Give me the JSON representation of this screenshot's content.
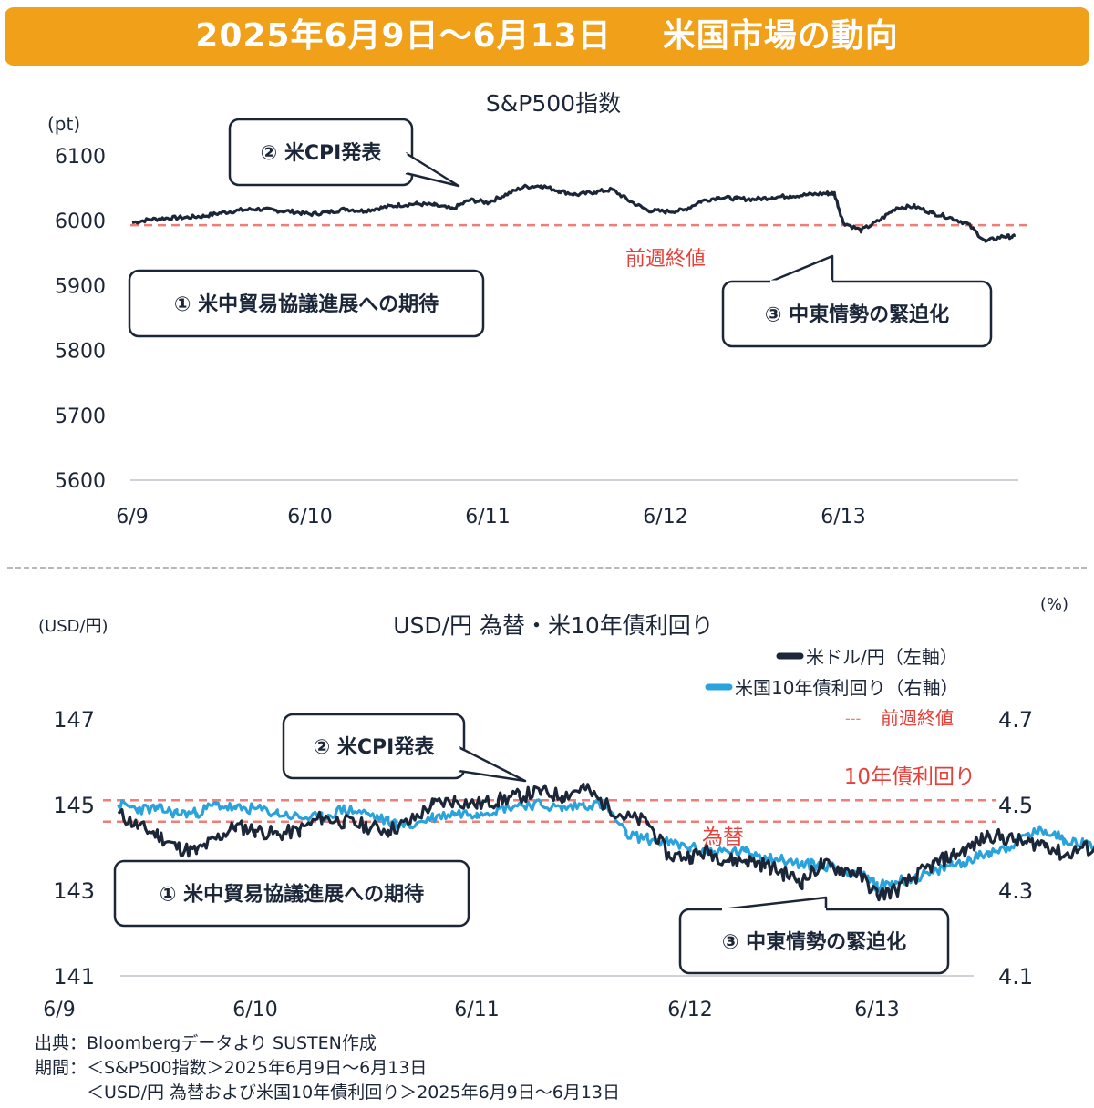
{
  "header": {
    "date_range": "2025年6月9日～6月13日",
    "title": "米国市場の動向"
  },
  "colors": {
    "banner": "#f0a019",
    "navy": "#1b2638",
    "blue": "#2aa3dc",
    "ref_line": "#ef7e79",
    "ref_text": "#e5413a",
    "axis": "#cfd3d8"
  },
  "chart_data": [
    {
      "type": "line",
      "title": "S&P500指数",
      "ylabel": "(pt)",
      "ylim": [
        5600,
        6100
      ],
      "yticks": [
        "6100",
        "6000",
        "5900",
        "5800",
        "5700",
        "5600"
      ],
      "xticks": [
        "6/9",
        "6/10",
        "6/11",
        "6/12",
        "6/13"
      ],
      "reference_line": {
        "label": "前週終値",
        "value": 5993
      },
      "series": [
        {
          "name": "S&P500指数",
          "x": [
            0,
            0.1,
            0.2,
            0.3,
            0.4,
            0.5,
            0.6,
            0.7,
            0.8,
            0.9,
            1,
            1.1,
            1.2,
            1.3,
            1.4,
            1.5,
            1.6,
            1.7,
            1.8,
            1.9,
            2,
            2.1,
            2.2,
            2.3,
            2.4,
            2.5,
            2.6,
            2.7,
            2.8,
            2.9,
            3,
            3.1,
            3.2,
            3.3,
            3.4,
            3.5,
            3.6,
            3.7,
            3.8,
            3.9,
            3.95,
            4,
            4.1,
            4.2,
            4.3,
            4.4,
            4.5,
            4.6,
            4.7,
            4.8,
            4.9,
            4.96
          ],
          "values": [
            5997,
            6002,
            6004,
            6005,
            6007,
            6012,
            6016,
            6018,
            6016,
            6014,
            6010,
            6013,
            6018,
            6015,
            6020,
            6024,
            6026,
            6024,
            6018,
            6032,
            6028,
            6040,
            6052,
            6054,
            6046,
            6040,
            6044,
            6048,
            6030,
            6016,
            6014,
            6016,
            6030,
            6036,
            6034,
            6033,
            6036,
            6038,
            6040,
            6042,
            6042,
            5997,
            5985,
            6000,
            6020,
            6022,
            6012,
            6005,
            5995,
            5968,
            5976,
            5975
          ]
        }
      ],
      "annotations": [
        "① 米中貿易協議進展への期待",
        "② 米CPI発表",
        "③ 中東情勢の緊迫化"
      ]
    },
    {
      "type": "line",
      "title": "USD/円 為替・米10年債利回り",
      "ylabel_left": "(USD/円)",
      "ylabel_right": "(%)",
      "ylim_left": [
        141,
        147
      ],
      "ylim_right": [
        4.1,
        4.7
      ],
      "yticks_left": [
        "147",
        "145",
        "143",
        "141"
      ],
      "yticks_right": [
        "4.7",
        "4.5",
        "4.3",
        "4.1"
      ],
      "xticks": [
        "6/9",
        "6/10",
        "6/11",
        "6/12",
        "6/13"
      ],
      "reference_lines": [
        {
          "label": "10年債利回り",
          "axis": "right",
          "value": 4.51
        },
        {
          "label": "為替",
          "axis": "left",
          "value": 144.6
        }
      ],
      "legend": {
        "usd": "米ドル/円（左軸）",
        "yield": "米国10年債利回り（右軸）",
        "ref": "前週終値",
        "ref_symbol": "---"
      },
      "series": [
        {
          "name": "米ドル/円（左軸）",
          "x": [
            0.3,
            0.4,
            0.5,
            0.6,
            0.7,
            0.8,
            0.9,
            1,
            1.1,
            1.2,
            1.3,
            1.4,
            1.5,
            1.6,
            1.7,
            1.8,
            1.9,
            2,
            2.1,
            2.2,
            2.3,
            2.4,
            2.5,
            2.6,
            2.7,
            2.8,
            2.9,
            3,
            3.1,
            3.2,
            3.3,
            3.4,
            3.5,
            3.6,
            3.7,
            3.8,
            3.9,
            4,
            4.1,
            4.2,
            4.3,
            4.4,
            4.5,
            4.6,
            4.7,
            4.8,
            4.9,
            5,
            5.1,
            5.2
          ],
          "values": [
            144.8,
            144.5,
            144.3,
            144.0,
            143.9,
            144.2,
            144.5,
            144.4,
            144.3,
            144.4,
            144.7,
            144.6,
            144.5,
            144.4,
            144.6,
            145.0,
            145.1,
            145.0,
            145.1,
            145.2,
            145.3,
            145.2,
            145.4,
            145.0,
            144.7,
            144.6,
            143.8,
            143.8,
            143.9,
            143.7,
            143.7,
            143.6,
            143.4,
            143.2,
            143.6,
            143.5,
            143.4,
            142.9,
            143.0,
            143.3,
            143.6,
            143.8,
            144.0,
            144.3,
            144.2,
            144.1,
            144.1,
            143.8,
            144.0,
            143.9
          ]
        },
        {
          "name": "米国10年債利回り（右軸）",
          "x": [
            0.3,
            0.4,
            0.5,
            0.6,
            0.7,
            0.8,
            0.9,
            1,
            1.1,
            1.2,
            1.3,
            1.4,
            1.5,
            1.6,
            1.7,
            1.8,
            1.9,
            2,
            2.1,
            2.2,
            2.3,
            2.4,
            2.5,
            2.6,
            2.7,
            2.8,
            2.9,
            3,
            3.1,
            3.2,
            3.3,
            3.4,
            3.5,
            3.6,
            3.7,
            3.8,
            3.9,
            4,
            4.1,
            4.2,
            4.3,
            4.4,
            4.5,
            4.6,
            4.7,
            4.8,
            4.9,
            5,
            5.1,
            5.2
          ],
          "values": [
            4.5,
            4.49,
            4.49,
            4.48,
            4.48,
            4.5,
            4.49,
            4.49,
            4.48,
            4.47,
            4.47,
            4.49,
            4.48,
            4.46,
            4.45,
            4.47,
            4.48,
            4.48,
            4.49,
            4.5,
            4.5,
            4.49,
            4.5,
            4.5,
            4.43,
            4.42,
            4.41,
            4.4,
            4.39,
            4.39,
            4.39,
            4.38,
            4.37,
            4.36,
            4.36,
            4.35,
            4.34,
            4.31,
            4.32,
            4.33,
            4.34,
            4.36,
            4.37,
            4.39,
            4.4,
            4.43,
            4.44,
            4.42,
            4.41,
            4.4
          ]
        }
      ],
      "annotations": [
        "① 米中貿易協議進展への期待",
        "② 米CPI発表",
        "③ 中東情勢の緊迫化"
      ]
    }
  ],
  "source": {
    "line1": "出典：Bloombergデータより SUSTEN作成",
    "line2": "期間：＜S&P500指数＞2025年6月9日～6月13日",
    "line3": "　　　＜USD/円 為替および米国10年債利回り＞2025年6月9日～6月13日"
  }
}
